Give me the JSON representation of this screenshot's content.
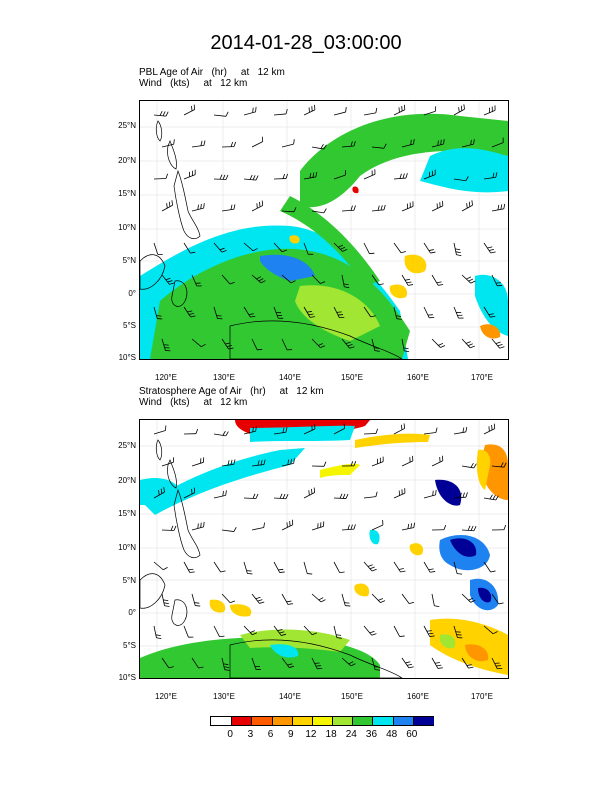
{
  "title": "2014-01-28_03:00:00",
  "panels": [
    {
      "title_line1": "PBL Age of Air   (hr)     at   12 km",
      "title_line2": "Wind   (kts)     at   12 km"
    },
    {
      "title_line1": "Stratosphere Age of Air   (hr)     at   12 km",
      "title_line2": "Wind   (kts)     at   12 km"
    }
  ],
  "axes": {
    "lat_labels": [
      "25°N",
      "20°N",
      "15°N",
      "10°N",
      "5°N",
      "0°",
      "5°S",
      "10°S"
    ],
    "lon_labels": [
      "120°E",
      "130°E",
      "140°E",
      "150°E",
      "160°E",
      "170°E"
    ]
  },
  "legend": {
    "labels": [
      "0",
      "3",
      "6",
      "9",
      "12",
      "18",
      "24",
      "36",
      "48",
      "60"
    ],
    "colors": [
      "#ffffff",
      "#e60000",
      "#ff5a00",
      "#ff9600",
      "#ffd200",
      "#f5f500",
      "#a0e632",
      "#32c832",
      "#00e6f0",
      "#1e82f0",
      "#000096"
    ]
  },
  "colors": {
    "land_outline": "#000000",
    "barb": "#000000",
    "grid": "#dcdcdc"
  }
}
